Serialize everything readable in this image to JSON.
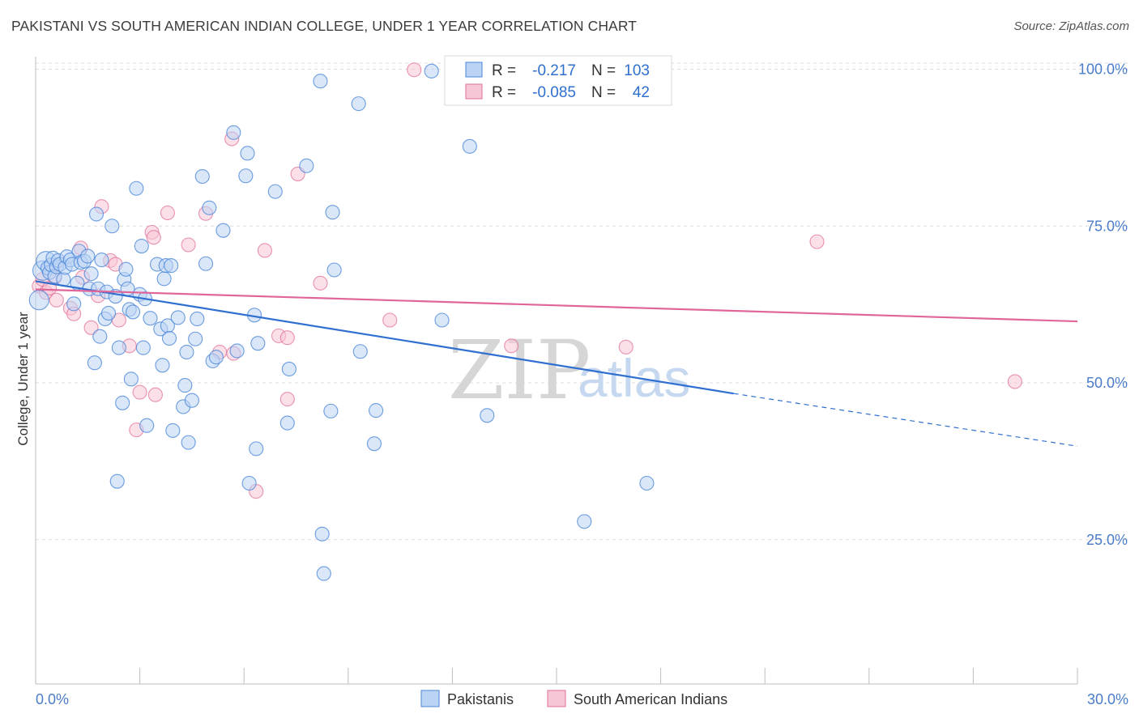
{
  "title": "PAKISTANI VS SOUTH AMERICAN INDIAN COLLEGE, UNDER 1 YEAR CORRELATION CHART",
  "source": "Source: ZipAtlas.com",
  "watermark": {
    "zip": "ZIP",
    "atlas": "atlas"
  },
  "colors": {
    "blue": "#4a86d8",
    "blue_fill": "#bcd4f4",
    "pink": "#e07098",
    "pink_fill": "#f7c6d6",
    "grid": "#dcdcdc",
    "axis_text": "#4a7cc9"
  },
  "legend": {
    "rows": [
      {
        "r_label": "R =",
        "r_value": "-0.217",
        "n_label": "N =",
        "n_value": "103"
      },
      {
        "r_label": "R =",
        "r_value": "-0.085",
        "n_label": "N =",
        "n_value": "42"
      }
    ]
  },
  "bottom_legend": [
    "Pakistanis",
    "South American Indians"
  ],
  "chart_data": {
    "type": "scatter",
    "title": "PAKISTANI VS SOUTH AMERICAN INDIAN COLLEGE, UNDER 1 YEAR CORRELATION CHART",
    "xlabel": "",
    "ylabel": "College, Under 1 year",
    "xlim": [
      0,
      30
    ],
    "ylim": [
      2,
      102
    ],
    "x_ticks": [
      {
        "value": 0,
        "label": "0.0%"
      },
      {
        "value": 30,
        "label": "30.0%"
      }
    ],
    "y_ticks": [
      {
        "value": 25,
        "label": "25.0%"
      },
      {
        "value": 50,
        "label": "50.0%"
      },
      {
        "value": 75,
        "label": "75.0%"
      },
      {
        "value": 100,
        "label": "100.0%"
      }
    ],
    "grid": true,
    "legend_position": "top-center",
    "series": [
      {
        "name": "Pakistanis",
        "color": "#4a86d8",
        "trend": {
          "x0": 0,
          "y0": 66.2,
          "x1": 20.1,
          "y1": 48.3,
          "dashed_to_x": 30,
          "dashed_to_y": 39.9
        },
        "points": [
          [
            0.1,
            63.2
          ],
          [
            0.2,
            67.9
          ],
          [
            0.3,
            69.4
          ],
          [
            0.35,
            68.3
          ],
          [
            0.4,
            67.6
          ],
          [
            0.45,
            68.8
          ],
          [
            0.5,
            69.9
          ],
          [
            0.55,
            67.0
          ],
          [
            0.6,
            68.5
          ],
          [
            0.65,
            69.5
          ],
          [
            0.7,
            68.9
          ],
          [
            0.8,
            66.5
          ],
          [
            0.85,
            68.4
          ],
          [
            0.9,
            70.1
          ],
          [
            1.0,
            69.6
          ],
          [
            1.05,
            68.9
          ],
          [
            1.1,
            62.6
          ],
          [
            1.2,
            65.9
          ],
          [
            1.25,
            71.0
          ],
          [
            1.3,
            69.2
          ],
          [
            1.4,
            69.4
          ],
          [
            1.5,
            70.2
          ],
          [
            1.55,
            65.0
          ],
          [
            1.6,
            67.4
          ],
          [
            1.7,
            53.2
          ],
          [
            1.75,
            76.9
          ],
          [
            1.8,
            65.0
          ],
          [
            1.85,
            57.4
          ],
          [
            1.9,
            69.6
          ],
          [
            2.0,
            60.2
          ],
          [
            2.05,
            64.5
          ],
          [
            2.1,
            61.1
          ],
          [
            2.2,
            75.0
          ],
          [
            2.3,
            63.8
          ],
          [
            2.35,
            34.3
          ],
          [
            2.4,
            55.6
          ],
          [
            2.5,
            46.8
          ],
          [
            2.55,
            66.5
          ],
          [
            2.6,
            68.1
          ],
          [
            2.65,
            65.0
          ],
          [
            2.7,
            61.7
          ],
          [
            2.75,
            50.6
          ],
          [
            2.8,
            61.3
          ],
          [
            2.9,
            81.0
          ],
          [
            3.0,
            64.1
          ],
          [
            3.05,
            71.8
          ],
          [
            3.1,
            55.6
          ],
          [
            3.15,
            63.4
          ],
          [
            3.2,
            43.2
          ],
          [
            3.3,
            60.3
          ],
          [
            3.5,
            68.9
          ],
          [
            3.6,
            58.6
          ],
          [
            3.65,
            52.8
          ],
          [
            3.7,
            66.6
          ],
          [
            3.75,
            68.7
          ],
          [
            3.8,
            59.1
          ],
          [
            3.85,
            57.1
          ],
          [
            3.9,
            68.7
          ],
          [
            3.95,
            42.4
          ],
          [
            4.1,
            60.4
          ],
          [
            4.25,
            46.2
          ],
          [
            4.3,
            49.6
          ],
          [
            4.35,
            54.9
          ],
          [
            4.4,
            40.5
          ],
          [
            4.5,
            47.2
          ],
          [
            4.6,
            57.0
          ],
          [
            4.65,
            60.2
          ],
          [
            4.8,
            82.9
          ],
          [
            4.9,
            69.0
          ],
          [
            5.0,
            77.9
          ],
          [
            5.1,
            53.5
          ],
          [
            5.2,
            54.1
          ],
          [
            5.4,
            74.3
          ],
          [
            5.7,
            89.9
          ],
          [
            5.8,
            55.1
          ],
          [
            6.05,
            83.0
          ],
          [
            6.1,
            86.6
          ],
          [
            6.15,
            34.0
          ],
          [
            6.3,
            60.8
          ],
          [
            6.35,
            39.5
          ],
          [
            6.4,
            56.3
          ],
          [
            6.9,
            80.5
          ],
          [
            7.25,
            43.6
          ],
          [
            7.3,
            52.2
          ],
          [
            7.8,
            84.6
          ],
          [
            8.2,
            98.1
          ],
          [
            8.25,
            25.9
          ],
          [
            8.3,
            19.6
          ],
          [
            8.5,
            45.5
          ],
          [
            8.55,
            77.2
          ],
          [
            8.6,
            68.0
          ],
          [
            9.3,
            94.5
          ],
          [
            9.35,
            55.0
          ],
          [
            9.75,
            40.3
          ],
          [
            9.8,
            45.6
          ],
          [
            11.4,
            99.7
          ],
          [
            11.7,
            60.0
          ],
          [
            12.5,
            87.7
          ],
          [
            13.0,
            44.8
          ],
          [
            15.8,
            27.9
          ],
          [
            17.6,
            34.0
          ]
        ]
      },
      {
        "name": "South American Indians",
        "color": "#e07098",
        "trend": {
          "x0": 0,
          "y0": 64.9,
          "x1": 30,
          "y1": 59.8
        },
        "points": [
          [
            0.1,
            65.4
          ],
          [
            0.2,
            66.5
          ],
          [
            0.3,
            64.4
          ],
          [
            0.4,
            65.1
          ],
          [
            0.55,
            66.8
          ],
          [
            0.6,
            63.2
          ],
          [
            1.0,
            61.9
          ],
          [
            1.1,
            61.0
          ],
          [
            1.3,
            71.5
          ],
          [
            1.35,
            66.8
          ],
          [
            1.6,
            58.8
          ],
          [
            1.8,
            63.9
          ],
          [
            1.9,
            78.1
          ],
          [
            2.15,
            69.5
          ],
          [
            2.3,
            68.9
          ],
          [
            2.4,
            60.0
          ],
          [
            2.7,
            55.9
          ],
          [
            2.9,
            42.5
          ],
          [
            3.0,
            48.5
          ],
          [
            3.35,
            74.0
          ],
          [
            3.4,
            73.2
          ],
          [
            3.45,
            48.1
          ],
          [
            3.8,
            77.1
          ],
          [
            4.4,
            72.0
          ],
          [
            4.9,
            77.0
          ],
          [
            5.3,
            54.9
          ],
          [
            5.65,
            88.9
          ],
          [
            5.7,
            54.7
          ],
          [
            6.35,
            32.7
          ],
          [
            6.6,
            71.1
          ],
          [
            7.0,
            57.5
          ],
          [
            7.25,
            57.2
          ],
          [
            7.25,
            47.4
          ],
          [
            7.55,
            83.3
          ],
          [
            8.2,
            65.9
          ],
          [
            10.2,
            60.0
          ],
          [
            10.9,
            99.9
          ],
          [
            13.7,
            55.9
          ],
          [
            17.0,
            55.7
          ],
          [
            22.5,
            72.5
          ],
          [
            28.2,
            50.2
          ]
        ]
      }
    ]
  }
}
